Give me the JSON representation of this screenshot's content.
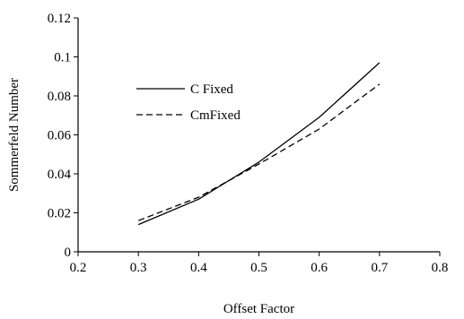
{
  "chart_data": {
    "type": "line",
    "xlabel": "Offset Factor",
    "ylabel": "Sommerfeld Number",
    "xlim": [
      0.2,
      0.8
    ],
    "ylim": [
      0,
      0.12
    ],
    "x_ticks": [
      "0.2",
      "0.3",
      "0.4",
      "0.5",
      "0.6",
      "0.7",
      "0.8"
    ],
    "y_ticks": [
      "0",
      "0.02",
      "0.04",
      "0.06",
      "0.08",
      "0.1",
      "0.12"
    ],
    "grid": false,
    "legend": "upper-left-inside",
    "series": [
      {
        "name": "C Fixed",
        "style": "solid",
        "color": "#000000",
        "x": [
          0.3,
          0.4,
          0.5,
          0.6,
          0.7
        ],
        "y": [
          0.014,
          0.027,
          0.046,
          0.069,
          0.097
        ]
      },
      {
        "name": "CmFixed",
        "style": "dashed",
        "color": "#000000",
        "x": [
          0.3,
          0.4,
          0.5,
          0.6,
          0.7
        ],
        "y": [
          0.016,
          0.028,
          0.045,
          0.063,
          0.086
        ]
      }
    ]
  }
}
